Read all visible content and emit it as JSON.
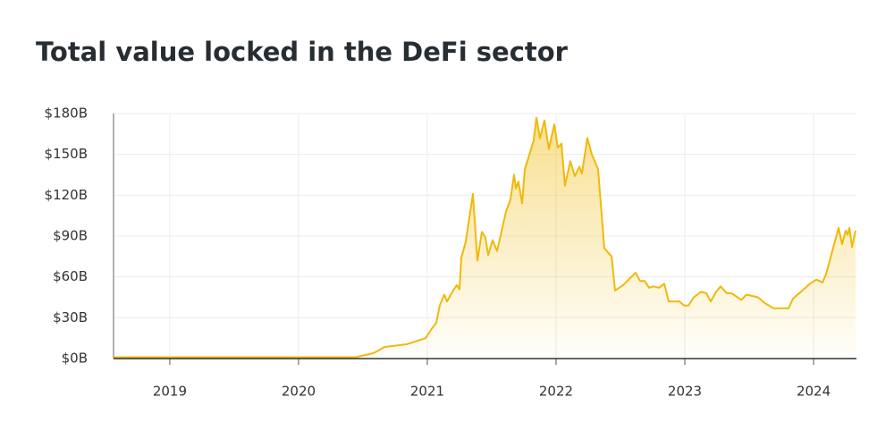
{
  "chart_data": {
    "type": "area",
    "title": "Total value locked in the DeFi sector",
    "color": "#f0b90b",
    "grid": true,
    "x": [
      2018.563,
      2020.444,
      2020.583,
      2020.667,
      2020.84,
      2020.986,
      2021.035,
      2021.069,
      2021.097,
      2021.132,
      2021.153,
      2021.201,
      2021.229,
      2021.25,
      2021.264,
      2021.299,
      2021.354,
      2021.389,
      2021.424,
      2021.451,
      2021.472,
      2021.507,
      2021.542,
      2021.611,
      2021.646,
      2021.674,
      2021.688,
      2021.708,
      2021.736,
      2021.757,
      2021.826,
      2021.847,
      2021.875,
      2021.91,
      2021.944,
      2021.986,
      2022.014,
      2022.042,
      2022.069,
      2022.111,
      2022.146,
      2022.181,
      2022.201,
      2022.243,
      2022.278,
      2022.326,
      2022.375,
      2022.431,
      2022.458,
      2022.521,
      2022.563,
      2022.618,
      2022.653,
      2022.688,
      2022.722,
      2022.757,
      2022.799,
      2022.84,
      2022.875,
      2022.958,
      2022.993,
      2023.028,
      2023.069,
      2023.125,
      2023.167,
      2023.201,
      2023.243,
      2023.278,
      2023.326,
      2023.361,
      2023.41,
      2023.438,
      2023.479,
      2023.569,
      2023.618,
      2023.688,
      2023.806,
      2023.84,
      2023.924,
      2023.972,
      2024.021,
      2024.069,
      2024.097,
      2024.194,
      2024.222,
      2024.25,
      2024.264,
      2024.278,
      2024.299,
      2024.326
    ],
    "values": [
      1,
      1,
      4,
      8.5,
      10.5,
      15,
      22,
      26,
      39,
      47,
      42,
      50,
      54,
      51,
      74,
      86,
      121,
      72,
      93,
      89,
      76,
      87,
      79,
      108,
      117,
      135,
      125,
      130,
      114,
      139,
      160,
      177,
      162,
      175,
      154,
      172,
      155,
      158,
      127,
      145,
      134,
      141,
      136,
      162,
      150,
      139,
      81,
      75,
      50,
      54,
      58,
      63,
      57,
      57,
      52,
      53,
      52,
      55,
      42,
      42,
      39,
      39,
      45,
      49,
      48,
      42,
      49,
      53,
      48,
      48,
      45,
      43,
      47,
      45,
      41,
      37,
      37,
      44,
      51,
      55,
      58,
      56,
      62,
      96,
      84,
      94,
      91,
      96,
      82,
      94
    ],
    "xlim": [
      2018.563,
      2024.333
    ],
    "xticks": [
      2019,
      2020,
      2021,
      2022,
      2023,
      2024
    ],
    "ylim": [
      0,
      180
    ],
    "yticks": [
      {
        "value": 0,
        "label": "$0B"
      },
      {
        "value": 30,
        "label": "$30B"
      },
      {
        "value": 60,
        "label": "$60B"
      },
      {
        "value": 90,
        "label": "$90B"
      },
      {
        "value": 120,
        "label": "$120B"
      },
      {
        "value": 150,
        "label": "$150B"
      },
      {
        "value": 180,
        "label": "$180B"
      }
    ]
  }
}
